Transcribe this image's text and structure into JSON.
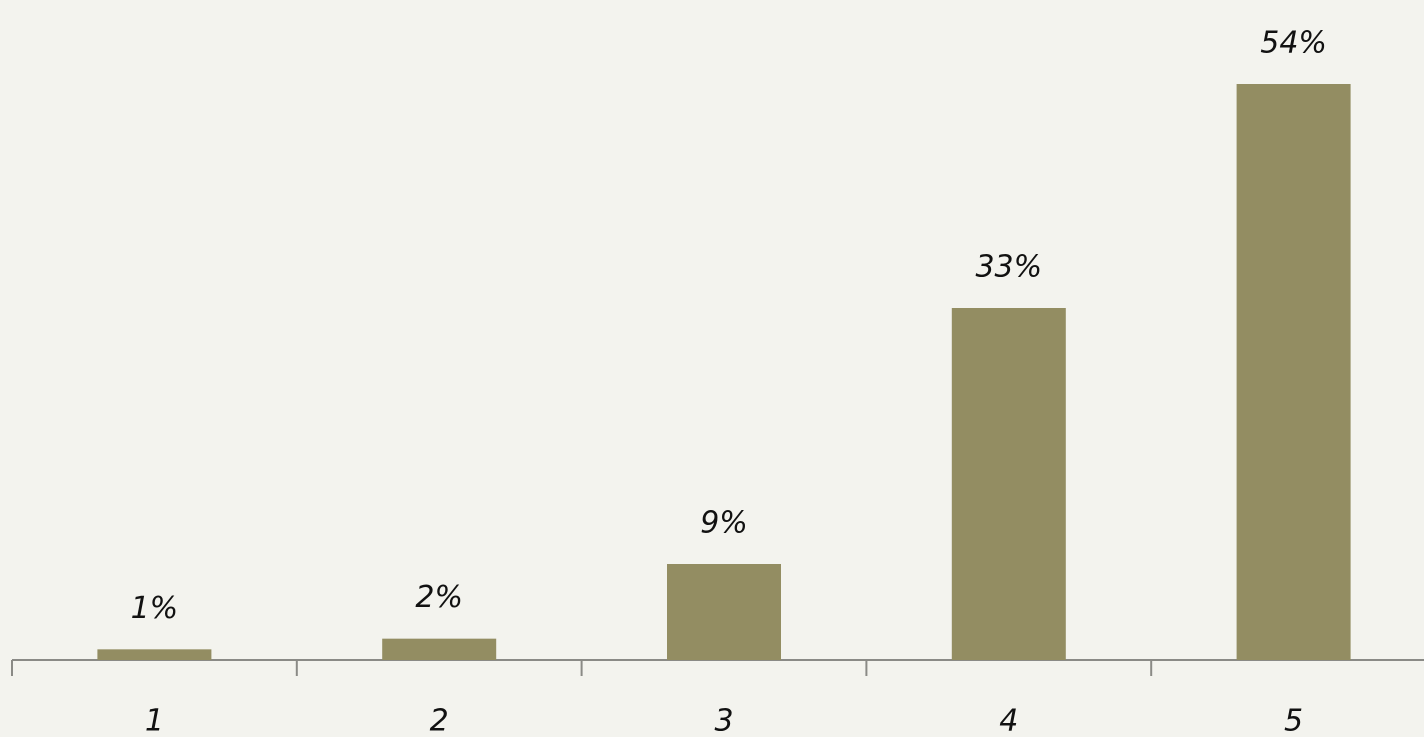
{
  "chart_data": {
    "type": "bar",
    "categories": [
      "1",
      "2",
      "3",
      "4",
      "5"
    ],
    "values": [
      1,
      2,
      9,
      33,
      54
    ],
    "value_labels": [
      "1%",
      "2%",
      "9%",
      "33%",
      "54%"
    ],
    "color": "#938d62"
  }
}
